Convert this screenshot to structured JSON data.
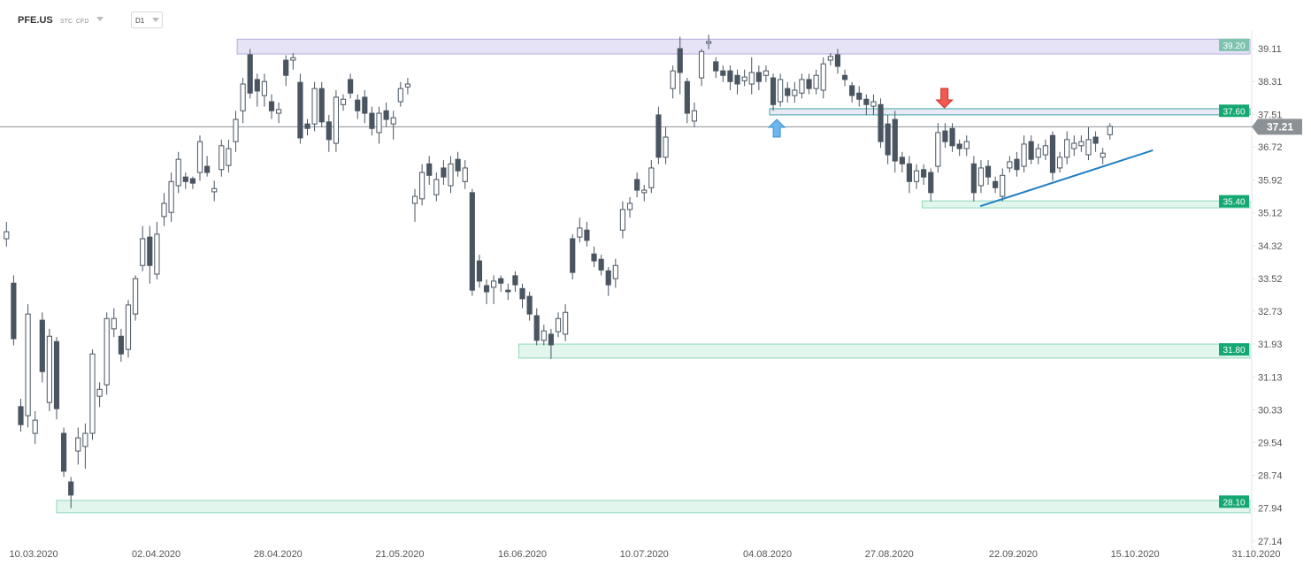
{
  "header": {
    "symbol": "PFE.US",
    "tags": [
      "STC",
      "CFD"
    ],
    "interval": "D1"
  },
  "chart_data": {
    "type": "candlestick",
    "open": [
      34.49,
      33.41,
      30.41,
      30.19,
      29.76,
      32.51,
      30.51,
      31.99,
      29.76,
      28.58,
      29.33,
      29.44,
      29.76,
      30.66,
      30.94,
      32.3,
      32.12,
      31.8,
      32.66,
      33.84,
      34.53,
      33.63,
      35.03,
      35.13,
      35.78,
      35.99,
      35.95,
      36.1,
      36.25,
      35.63,
      36.17,
      36.27,
      36.85,
      37.6,
      38.96,
      38.36,
      37.97,
      37.82,
      37.54,
      38.83,
      38.83,
      38.29,
      37.28,
      37.28,
      38.14,
      37.33,
      36.81,
      37.75,
      38.36,
      37.86,
      37.93,
      37.54,
      37.07,
      37.6,
      37.28,
      37.82,
      38.18,
      35.35,
      35.46,
      36.31,
      35.56,
      36.21,
      35.78,
      36.42,
      35.88,
      35.61,
      33.95,
      33.35,
      33.31,
      33.52,
      33.24,
      33.59,
      33.28,
      33.09,
      32.62,
      32.02,
      32.17,
      32.23,
      32.17,
      34.49,
      34.53,
      34.7,
      34.12,
      33.99,
      33.71,
      33.52,
      34.7,
      35.2,
      35.93,
      35.61,
      35.73,
      37.5,
      36.47,
      38.14,
      39.11,
      38.31,
      37.35,
      38.4,
      39.24,
      38.79,
      38.57,
      38.57,
      38.46,
      38.33,
      38.25,
      38.53,
      38.46,
      38.4,
      37.82,
      38.14,
      37.97,
      38.03,
      38.36,
      38.14,
      38.1,
      38.83,
      38.96,
      38.46,
      38.21,
      38.03,
      37.88,
      37.71,
      37.75,
      37.28,
      37.39,
      36.47,
      36.31,
      35.88,
      36.17,
      36.1,
      36.25,
      37.11,
      37.17,
      36.79,
      36.68,
      36.31,
      35.78,
      36.25,
      35.88,
      35.52,
      36.21,
      36.42,
      36.25,
      36.85,
      36.47,
      36.53,
      37.0,
      36.21,
      36.47,
      36.68,
      36.75,
      36.53,
      36.96,
      36.47,
      37.02
    ],
    "high": [
      34.9,
      33.6,
      30.6,
      32.9,
      30.3,
      32.7,
      32.3,
      32.1,
      29.9,
      28.7,
      29.9,
      30.0,
      31.8,
      31.0,
      32.7,
      32.8,
      32.3,
      33.0,
      33.6,
      34.8,
      34.8,
      34.9,
      35.6,
      36.1,
      36.6,
      36.1,
      36.0,
      37.0,
      36.5,
      35.9,
      36.9,
      36.9,
      37.6,
      38.4,
      39.1,
      38.5,
      38.5,
      38.0,
      37.8,
      38.95,
      39.0,
      38.5,
      37.4,
      38.3,
      38.3,
      37.5,
      38.1,
      38.0,
      38.5,
      38.0,
      38.1,
      37.7,
      37.7,
      37.8,
      37.6,
      38.3,
      38.4,
      35.7,
      36.3,
      36.5,
      36.1,
      36.4,
      36.5,
      36.6,
      36.4,
      35.7,
      34.1,
      33.5,
      33.6,
      33.6,
      33.4,
      33.7,
      33.4,
      33.2,
      32.8,
      32.4,
      32.3,
      32.7,
      32.9,
      34.6,
      35.0,
      34.9,
      34.3,
      34.1,
      33.8,
      34.0,
      35.4,
      35.5,
      36.1,
      35.8,
      36.4,
      37.7,
      37.2,
      38.7,
      39.4,
      38.4,
      37.8,
      39.1,
      39.45,
      38.9,
      38.7,
      38.7,
      38.6,
      38.6,
      38.9,
      38.7,
      38.7,
      38.5,
      38.5,
      38.3,
      38.3,
      38.5,
      38.5,
      38.6,
      38.9,
      39.0,
      39.1,
      38.6,
      38.3,
      38.2,
      38.0,
      38.0,
      37.9,
      37.5,
      37.6,
      36.6,
      36.5,
      36.3,
      36.3,
      36.2,
      37.3,
      37.3,
      37.3,
      36.9,
      37.0,
      36.5,
      36.4,
      36.4,
      36.0,
      36.2,
      36.5,
      36.6,
      37.0,
      37.0,
      36.8,
      36.9,
      37.1,
      36.6,
      37.1,
      37.0,
      37.0,
      37.2,
      37.1,
      36.7,
      37.3
    ],
    "low": [
      34.3,
      31.9,
      29.8,
      29.9,
      29.5,
      31.0,
      30.3,
      30.1,
      28.7,
      27.94,
      29.0,
      28.9,
      29.6,
      30.4,
      30.7,
      32.1,
      31.5,
      31.6,
      32.5,
      33.7,
      33.4,
      33.5,
      34.8,
      34.9,
      35.6,
      35.7,
      35.7,
      35.9,
      36.0,
      35.4,
      36.0,
      36.1,
      36.6,
      37.3,
      37.9,
      37.7,
      37.7,
      37.4,
      37.3,
      38.2,
      38.6,
      36.8,
      37.0,
      37.1,
      37.2,
      36.6,
      36.6,
      37.6,
      37.9,
      37.4,
      37.3,
      37.0,
      36.8,
      37.2,
      36.9,
      37.7,
      38.0,
      34.9,
      35.3,
      35.8,
      35.4,
      35.8,
      35.6,
      36.0,
      35.7,
      33.1,
      33.3,
      32.9,
      32.9,
      33.2,
      33.0,
      33.2,
      32.8,
      32.5,
      31.9,
      31.9,
      31.57,
      32.1,
      32.0,
      33.5,
      34.4,
      34.3,
      33.8,
      33.6,
      33.1,
      33.3,
      34.5,
      35.0,
      35.5,
      35.4,
      35.6,
      36.3,
      36.3,
      37.9,
      38.0,
      37.3,
      37.2,
      38.2,
      39.1,
      38.4,
      38.3,
      38.1,
      38.0,
      38.2,
      38.0,
      38.1,
      38.3,
      37.6,
      37.7,
      37.8,
      37.8,
      37.9,
      38.0,
      38.0,
      37.9,
      38.7,
      38.5,
      38.2,
      37.8,
      37.7,
      37.5,
      37.5,
      36.7,
      36.3,
      36.1,
      36.1,
      35.6,
      35.7,
      35.8,
      35.4,
      36.1,
      36.7,
      36.6,
      36.5,
      36.5,
      35.4,
      35.6,
      35.8,
      35.6,
      35.4,
      36.1,
      36.0,
      36.1,
      36.3,
      36.3,
      36.4,
      35.9,
      36.1,
      36.3,
      36.5,
      36.6,
      36.4,
      36.6,
      36.3,
      36.9
    ],
    "close": [
      34.66,
      32.06,
      29.97,
      32.66,
      30.08,
      31.26,
      32.12,
      30.36,
      28.84,
      28.26,
      29.65,
      29.76,
      31.69,
      30.83,
      32.55,
      32.55,
      31.69,
      32.88,
      33.52,
      34.49,
      33.84,
      34.6,
      35.35,
      35.88,
      36.42,
      35.88,
      35.84,
      36.85,
      36.1,
      35.71,
      36.75,
      36.68,
      37.39,
      38.25,
      38.03,
      38.08,
      38.31,
      37.6,
      37.63,
      38.46,
      38.89,
      36.94,
      37.17,
      38.14,
      37.33,
      36.9,
      37.93,
      37.88,
      38.03,
      37.6,
      37.54,
      37.17,
      37.54,
      37.39,
      37.43,
      38.14,
      38.25,
      35.52,
      36.1,
      36.03,
      35.93,
      35.99,
      36.31,
      36.14,
      36.21,
      33.24,
      33.46,
      33.2,
      33.46,
      33.41,
      33.2,
      33.37,
      33.03,
      32.66,
      32.02,
      32.25,
      31.91,
      32.55,
      32.7,
      33.67,
      34.75,
      34.45,
      33.95,
      33.73,
      33.37,
      33.84,
      35.2,
      35.35,
      35.67,
      35.67,
      36.21,
      36.47,
      36.96,
      38.57,
      38.53,
      37.54,
      37.6,
      39.04,
      39.28,
      38.57,
      38.46,
      38.31,
      38.25,
      38.42,
      38.53,
      38.31,
      38.57,
      37.75,
      38.36,
      37.97,
      38.1,
      38.36,
      38.14,
      38.46,
      38.74,
      38.92,
      38.68,
      38.36,
      37.97,
      37.88,
      37.75,
      37.82,
      36.85,
      36.53,
      36.38,
      36.31,
      35.88,
      36.14,
      35.99,
      35.61,
      37.07,
      36.85,
      36.75,
      36.68,
      36.85,
      35.61,
      36.21,
      35.99,
      35.73,
      36.03,
      36.36,
      36.17,
      36.79,
      36.42,
      36.68,
      36.75,
      36.1,
      36.47,
      36.9,
      36.81,
      36.85,
      36.9,
      36.81,
      36.57,
      37.22
    ],
    "up_color": "#ffffff",
    "down_color": "#4a5561",
    "wick_color": "#4a5561",
    "xlim": [
      -0.9,
      174.4
    ],
    "xticks": [
      {
        "value": 3.8,
        "label": "10.03.2020"
      },
      {
        "value": 20.9,
        "label": "02.04.2020"
      },
      {
        "value": 37.9,
        "label": "28.04.2020"
      },
      {
        "value": 54.9,
        "label": "21.05.2020"
      },
      {
        "value": 72.0,
        "label": "16.06.2020"
      },
      {
        "value": 89.0,
        "label": "10.07.2020"
      },
      {
        "value": 106.2,
        "label": "04.08.2020"
      },
      {
        "value": 123.2,
        "label": "27.08.2020"
      },
      {
        "value": 140.5,
        "label": "22.09.2020"
      },
      {
        "value": 157.5,
        "label": "15.10.2020"
      },
      {
        "value": 174.4,
        "label": "31.10.2020"
      }
    ],
    "ylim": [
      26.86,
      39.54
    ],
    "yticks": [
      39.11,
      38.31,
      37.51,
      36.72,
      35.92,
      35.12,
      34.32,
      33.52,
      32.73,
      31.93,
      31.13,
      30.33,
      29.54,
      28.74,
      27.94,
      27.14
    ],
    "zones": [
      {
        "value": 39.2,
        "label": "39.20",
        "low": 38.98,
        "high": 39.34,
        "start": 32.2,
        "color": "#e6e3f7",
        "border": "#b5addf",
        "label_color": "#7ec3ae"
      },
      {
        "value": 37.6,
        "label": "37.60",
        "low": 37.5,
        "high": 37.65,
        "start": 106.5,
        "color": "#ebe9f8",
        "border": "#3aa7a0",
        "label_color": "#14a872"
      },
      {
        "value": 35.4,
        "label": "35.40",
        "low": 35.24,
        "high": 35.41,
        "start": 127.8,
        "color": "#e2f6ee",
        "border": "#8fd8b9",
        "label_color": "#14a872"
      },
      {
        "value": 31.8,
        "label": "31.80",
        "low": 31.59,
        "high": 31.93,
        "start": 71.5,
        "color": "#e2f6ee",
        "border": "#8fd8b9",
        "label_color": "#14a872"
      },
      {
        "value": 28.1,
        "label": "28.10",
        "low": 27.83,
        "high": 28.13,
        "start": 7.0,
        "color": "#e2f6ee",
        "border": "#8fd8b9",
        "label_color": "#14a872"
      }
    ],
    "last_price": {
      "value": 37.21,
      "label": "37.21",
      "color": "#8c9196"
    },
    "trendline": {
      "x": [
        135.9,
        160.0
      ],
      "y": [
        35.28,
        36.64
      ],
      "color": "#1f7fc4"
    },
    "signals": [
      {
        "direction": "up",
        "x": 107.5,
        "y": 37.39,
        "color": "#6cb6ee"
      },
      {
        "direction": "down",
        "x": 130.9,
        "y": 37.67,
        "color": "#f05a4f"
      }
    ]
  }
}
